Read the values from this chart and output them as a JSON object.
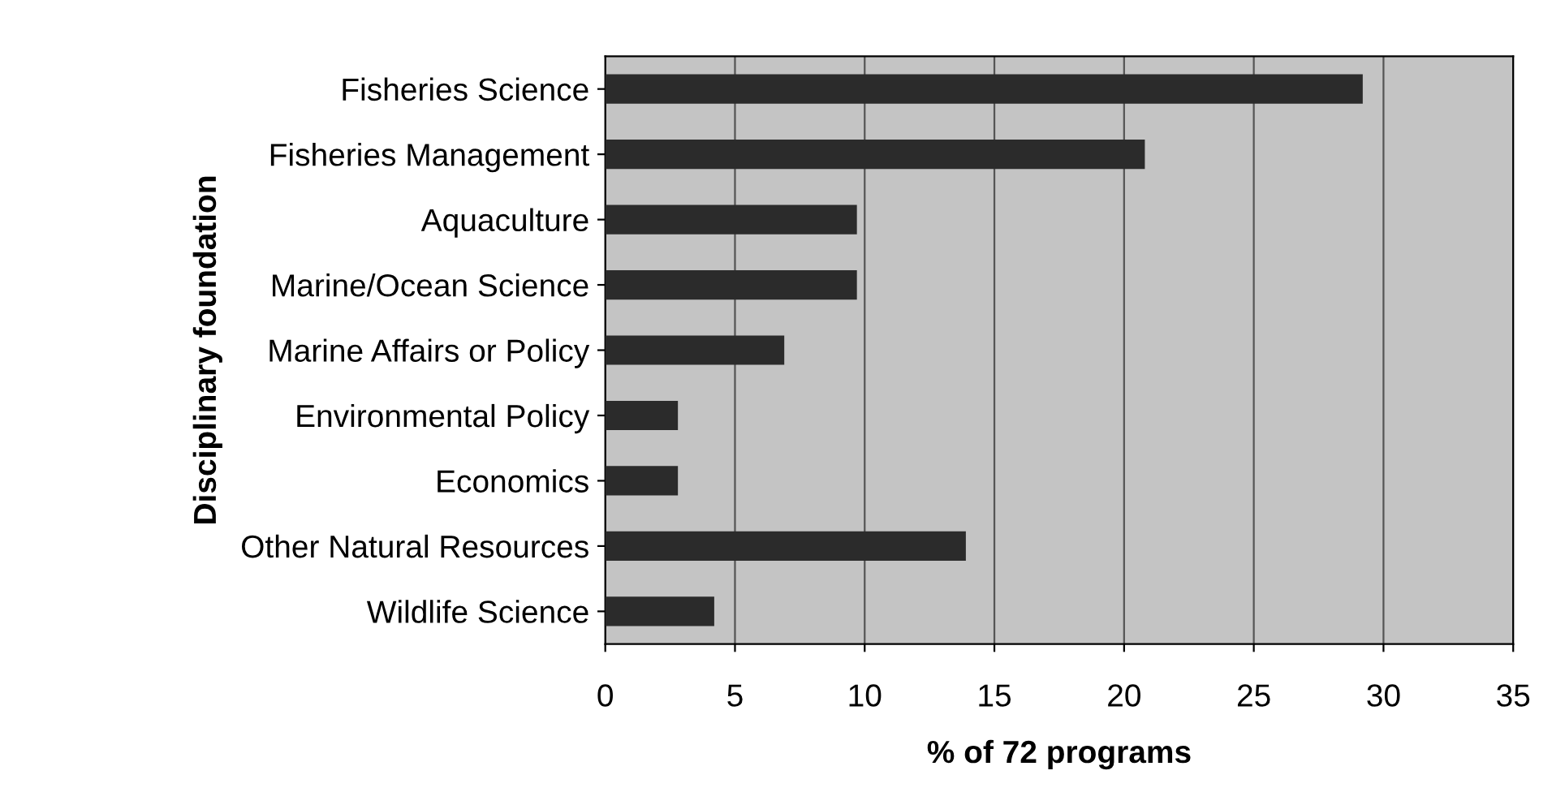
{
  "chart_data": {
    "type": "bar",
    "orientation": "horizontal",
    "xlabel": "% of 72 programs",
    "ylabel": "Disciplinary foundation",
    "categories": [
      "Fisheries Science",
      "Fisheries Management",
      "Aquaculture",
      "Marine/Ocean Science",
      "Marine Affairs or Policy",
      "Environmental Policy",
      "Economics",
      "Other Natural Resources",
      "Wildlife Science"
    ],
    "values": [
      29.2,
      20.8,
      9.7,
      9.7,
      6.9,
      2.8,
      2.8,
      13.9,
      4.2
    ],
    "color": "#2b2b2b",
    "xlim": [
      0,
      35
    ],
    "xticks": [
      0,
      5,
      10,
      15,
      20,
      25,
      30,
      35
    ],
    "grid": "x"
  }
}
